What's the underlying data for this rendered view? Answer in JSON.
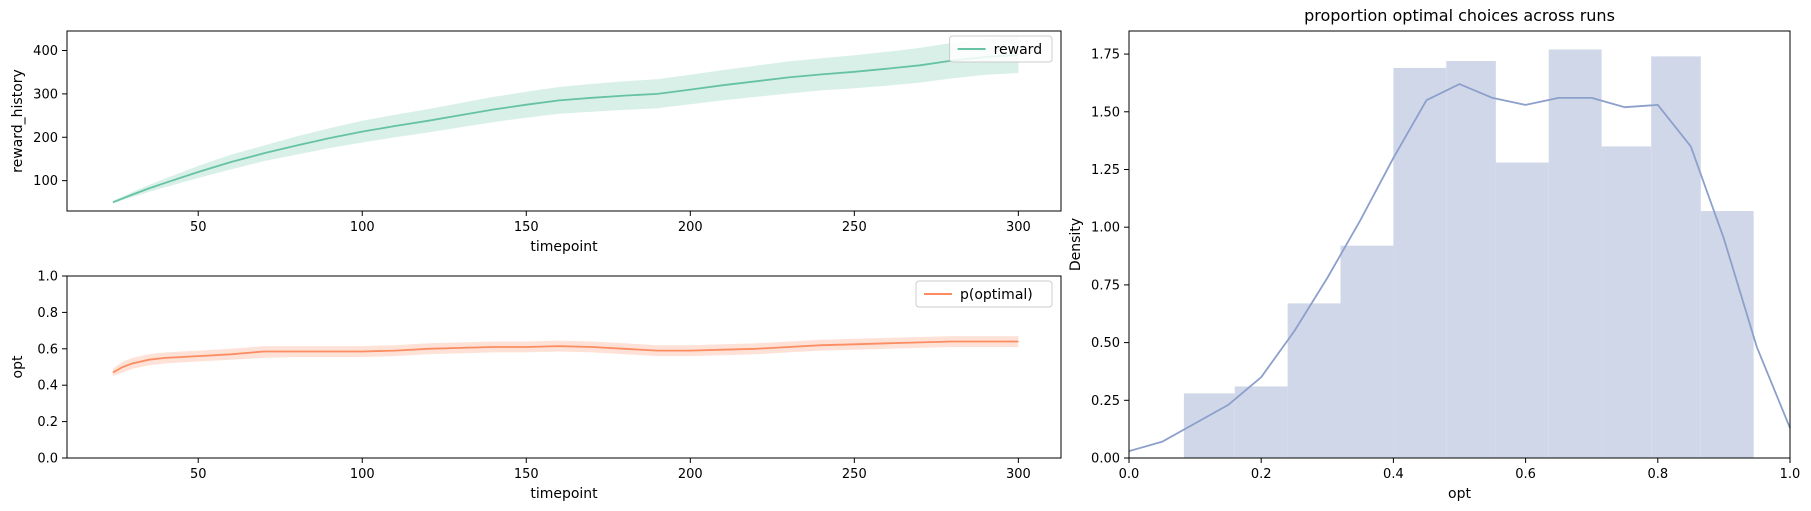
{
  "chart_data": [
    {
      "type": "line",
      "xlabel": "timepoint",
      "ylabel": "reward_history",
      "xlim": [
        10,
        313
      ],
      "ylim": [
        30,
        445
      ],
      "xticks": [
        50,
        100,
        150,
        200,
        250,
        300
      ],
      "yticks": [
        100,
        200,
        300,
        400
      ],
      "legend_position": "top-right",
      "colors": {
        "line": "#66c2a5",
        "band": "#66c2a5"
      },
      "series": [
        {
          "name": "reward",
          "x": [
            24,
            30,
            35,
            40,
            50,
            60,
            70,
            80,
            90,
            100,
            110,
            120,
            130,
            140,
            150,
            160,
            170,
            180,
            190,
            200,
            210,
            220,
            230,
            240,
            250,
            260,
            270,
            280,
            290,
            300
          ],
          "y": [
            50,
            68,
            82,
            95,
            120,
            143,
            163,
            181,
            198,
            213,
            226,
            238,
            251,
            264,
            275,
            285,
            291,
            296,
            300,
            310,
            320,
            329,
            338,
            345,
            351,
            358,
            366,
            377,
            385,
            390
          ],
          "y_lower": [
            48,
            62,
            74,
            85,
            106,
            126,
            145,
            160,
            175,
            188,
            200,
            211,
            223,
            235,
            245,
            254,
            259,
            263,
            267,
            276,
            285,
            293,
            301,
            308,
            313,
            319,
            326,
            336,
            344,
            348
          ],
          "y_upper": [
            53,
            74,
            90,
            105,
            134,
            160,
            181,
            202,
            221,
            238,
            252,
            265,
            279,
            293,
            305,
            316,
            323,
            329,
            334,
            344,
            355,
            365,
            375,
            382,
            389,
            397,
            406,
            418,
            426,
            432
          ]
        }
      ]
    },
    {
      "type": "line",
      "xlabel": "timepoint",
      "ylabel": "opt",
      "xlim": [
        10,
        313
      ],
      "ylim": [
        0,
        1
      ],
      "xticks": [
        50,
        100,
        150,
        200,
        250,
        300
      ],
      "yticks": [
        0.0,
        0.2,
        0.4,
        0.6,
        0.8,
        1.0
      ],
      "ytick_labels": [
        "0.0",
        "0.2",
        "0.4",
        "0.6",
        "0.8",
        "1.0"
      ],
      "legend_position": "top-right",
      "colors": {
        "line": "#fc8d62",
        "band": "#fc8d62"
      },
      "series": [
        {
          "name": "p(optimal)",
          "x": [
            24,
            27,
            30,
            35,
            40,
            50,
            60,
            70,
            80,
            90,
            100,
            110,
            120,
            130,
            140,
            150,
            160,
            170,
            180,
            190,
            200,
            210,
            220,
            230,
            240,
            250,
            260,
            270,
            280,
            290,
            300
          ],
          "y": [
            0.47,
            0.5,
            0.52,
            0.54,
            0.55,
            0.56,
            0.57,
            0.585,
            0.585,
            0.585,
            0.585,
            0.59,
            0.6,
            0.605,
            0.61,
            0.61,
            0.615,
            0.61,
            0.6,
            0.59,
            0.59,
            0.595,
            0.6,
            0.61,
            0.62,
            0.625,
            0.63,
            0.635,
            0.64,
            0.64,
            0.64
          ],
          "y_lower": [
            0.45,
            0.47,
            0.49,
            0.51,
            0.52,
            0.53,
            0.54,
            0.55,
            0.555,
            0.555,
            0.555,
            0.56,
            0.57,
            0.575,
            0.58,
            0.58,
            0.585,
            0.58,
            0.57,
            0.56,
            0.56,
            0.565,
            0.57,
            0.58,
            0.59,
            0.595,
            0.6,
            0.605,
            0.61,
            0.61,
            0.61
          ],
          "y_upper": [
            0.49,
            0.53,
            0.55,
            0.57,
            0.58,
            0.59,
            0.6,
            0.615,
            0.615,
            0.615,
            0.615,
            0.62,
            0.63,
            0.635,
            0.64,
            0.64,
            0.645,
            0.64,
            0.63,
            0.62,
            0.62,
            0.625,
            0.63,
            0.64,
            0.65,
            0.655,
            0.66,
            0.665,
            0.67,
            0.67,
            0.67
          ]
        }
      ]
    },
    {
      "type": "bar",
      "title": "proportion optimal choices across runs",
      "xlabel": "opt",
      "ylabel": "Density",
      "xlim": [
        0,
        1
      ],
      "ylim": [
        0,
        1.85
      ],
      "xticks": [
        0.0,
        0.2,
        0.4,
        0.6,
        0.8,
        1.0
      ],
      "xtick_labels": [
        "0.0",
        "0.2",
        "0.4",
        "0.6",
        "0.8",
        "1.0"
      ],
      "yticks": [
        0.0,
        0.25,
        0.5,
        0.75,
        1.0,
        1.25,
        1.5,
        1.75
      ],
      "ytick_labels": [
        "0.00",
        "0.25",
        "0.50",
        "0.75",
        "1.00",
        "1.25",
        "1.50",
        "1.75"
      ],
      "colors": {
        "bars": "#d0d7e8",
        "kde": "#8da0cb"
      },
      "bins": [
        {
          "x0": 0.083,
          "x1": 0.16,
          "value": 0.28
        },
        {
          "x0": 0.16,
          "x1": 0.24,
          "value": 0.31
        },
        {
          "x0": 0.24,
          "x1": 0.32,
          "value": 0.67
        },
        {
          "x0": 0.32,
          "x1": 0.4,
          "value": 0.92
        },
        {
          "x0": 0.4,
          "x1": 0.48,
          "value": 1.69
        },
        {
          "x0": 0.48,
          "x1": 0.555,
          "value": 1.72
        },
        {
          "x0": 0.555,
          "x1": 0.635,
          "value": 1.28
        },
        {
          "x0": 0.635,
          "x1": 0.715,
          "value": 1.77
        },
        {
          "x0": 0.715,
          "x1": 0.79,
          "value": 1.35
        },
        {
          "x0": 0.79,
          "x1": 0.865,
          "value": 1.74
        },
        {
          "x0": 0.865,
          "x1": 0.945,
          "value": 1.07
        }
      ],
      "kde": {
        "x": [
          0.0,
          0.05,
          0.1,
          0.15,
          0.2,
          0.25,
          0.3,
          0.35,
          0.4,
          0.45,
          0.5,
          0.55,
          0.6,
          0.65,
          0.7,
          0.75,
          0.8,
          0.85,
          0.9,
          0.95,
          1.0
        ],
        "y": [
          0.03,
          0.07,
          0.15,
          0.23,
          0.35,
          0.55,
          0.78,
          1.03,
          1.3,
          1.55,
          1.62,
          1.56,
          1.53,
          1.56,
          1.56,
          1.52,
          1.53,
          1.35,
          0.95,
          0.48,
          0.13
        ]
      }
    }
  ]
}
